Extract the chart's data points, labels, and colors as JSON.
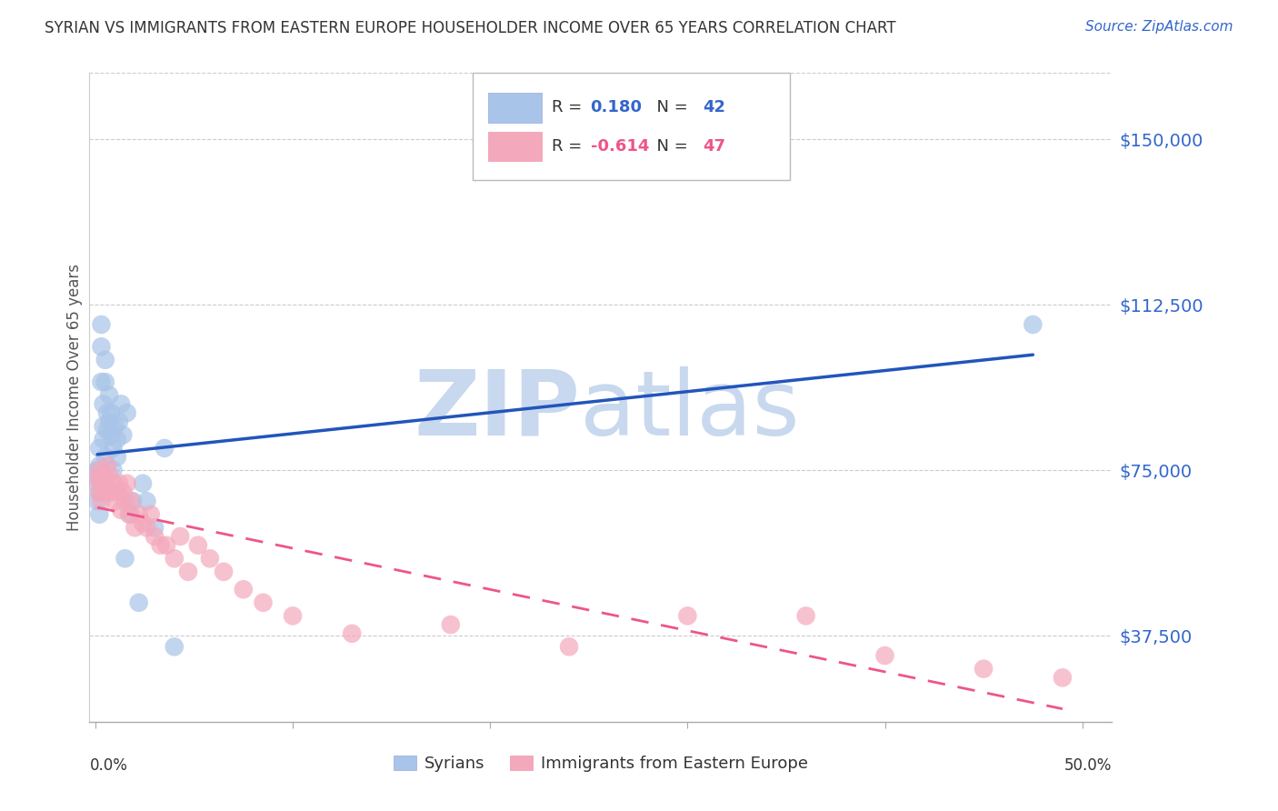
{
  "title": "SYRIAN VS IMMIGRANTS FROM EASTERN EUROPE HOUSEHOLDER INCOME OVER 65 YEARS CORRELATION CHART",
  "source": "Source: ZipAtlas.com",
  "ylabel": "Householder Income Over 65 years",
  "y_tick_values": [
    150000,
    112500,
    75000,
    37500
  ],
  "y_min": 18000,
  "y_max": 165000,
  "x_min": -0.003,
  "x_max": 0.515,
  "blue_color": "#a8c4e8",
  "pink_color": "#f4a8bc",
  "line_blue": "#2255bb",
  "line_pink": "#ee5588",
  "watermark_zip_color": "#c8d8ee",
  "watermark_atlas_color": "#c8d8ee",
  "title_color": "#333333",
  "source_color": "#3366cc",
  "tick_label_color": "#3366cc",
  "ylabel_color": "#555555",
  "grid_color": "#cccccc",
  "legend_r1_color": "#3366cc",
  "legend_r2_color": "#ee5588",
  "syrian_x": [
    0.001,
    0.001,
    0.001,
    0.002,
    0.002,
    0.002,
    0.002,
    0.002,
    0.003,
    0.003,
    0.003,
    0.004,
    0.004,
    0.004,
    0.005,
    0.005,
    0.005,
    0.006,
    0.006,
    0.007,
    0.007,
    0.008,
    0.008,
    0.009,
    0.009,
    0.01,
    0.011,
    0.011,
    0.012,
    0.013,
    0.014,
    0.015,
    0.016,
    0.018,
    0.019,
    0.022,
    0.024,
    0.026,
    0.03,
    0.035,
    0.04,
    0.475
  ],
  "syrian_y": [
    75000,
    72000,
    68000,
    80000,
    76000,
    73000,
    70000,
    65000,
    108000,
    103000,
    95000,
    90000,
    85000,
    82000,
    100000,
    95000,
    78000,
    88000,
    84000,
    92000,
    86000,
    88000,
    83000,
    80000,
    75000,
    85000,
    82000,
    78000,
    86000,
    90000,
    83000,
    55000,
    88000,
    65000,
    68000,
    45000,
    72000,
    68000,
    62000,
    80000,
    35000,
    108000
  ],
  "eastern_x": [
    0.001,
    0.002,
    0.002,
    0.003,
    0.003,
    0.004,
    0.004,
    0.005,
    0.006,
    0.006,
    0.007,
    0.008,
    0.009,
    0.01,
    0.011,
    0.012,
    0.013,
    0.014,
    0.015,
    0.016,
    0.017,
    0.018,
    0.02,
    0.022,
    0.024,
    0.026,
    0.028,
    0.03,
    0.033,
    0.036,
    0.04,
    0.043,
    0.047,
    0.052,
    0.058,
    0.065,
    0.075,
    0.085,
    0.1,
    0.13,
    0.18,
    0.24,
    0.3,
    0.36,
    0.4,
    0.45,
    0.49
  ],
  "eastern_y": [
    73000,
    75000,
    70000,
    72000,
    68000,
    74000,
    71000,
    72000,
    76000,
    70000,
    74000,
    70000,
    72000,
    68000,
    70000,
    72000,
    66000,
    70000,
    68000,
    72000,
    65000,
    68000,
    62000,
    65000,
    63000,
    62000,
    65000,
    60000,
    58000,
    58000,
    55000,
    60000,
    52000,
    58000,
    55000,
    52000,
    48000,
    45000,
    42000,
    38000,
    40000,
    35000,
    42000,
    42000,
    33000,
    30000,
    28000
  ]
}
